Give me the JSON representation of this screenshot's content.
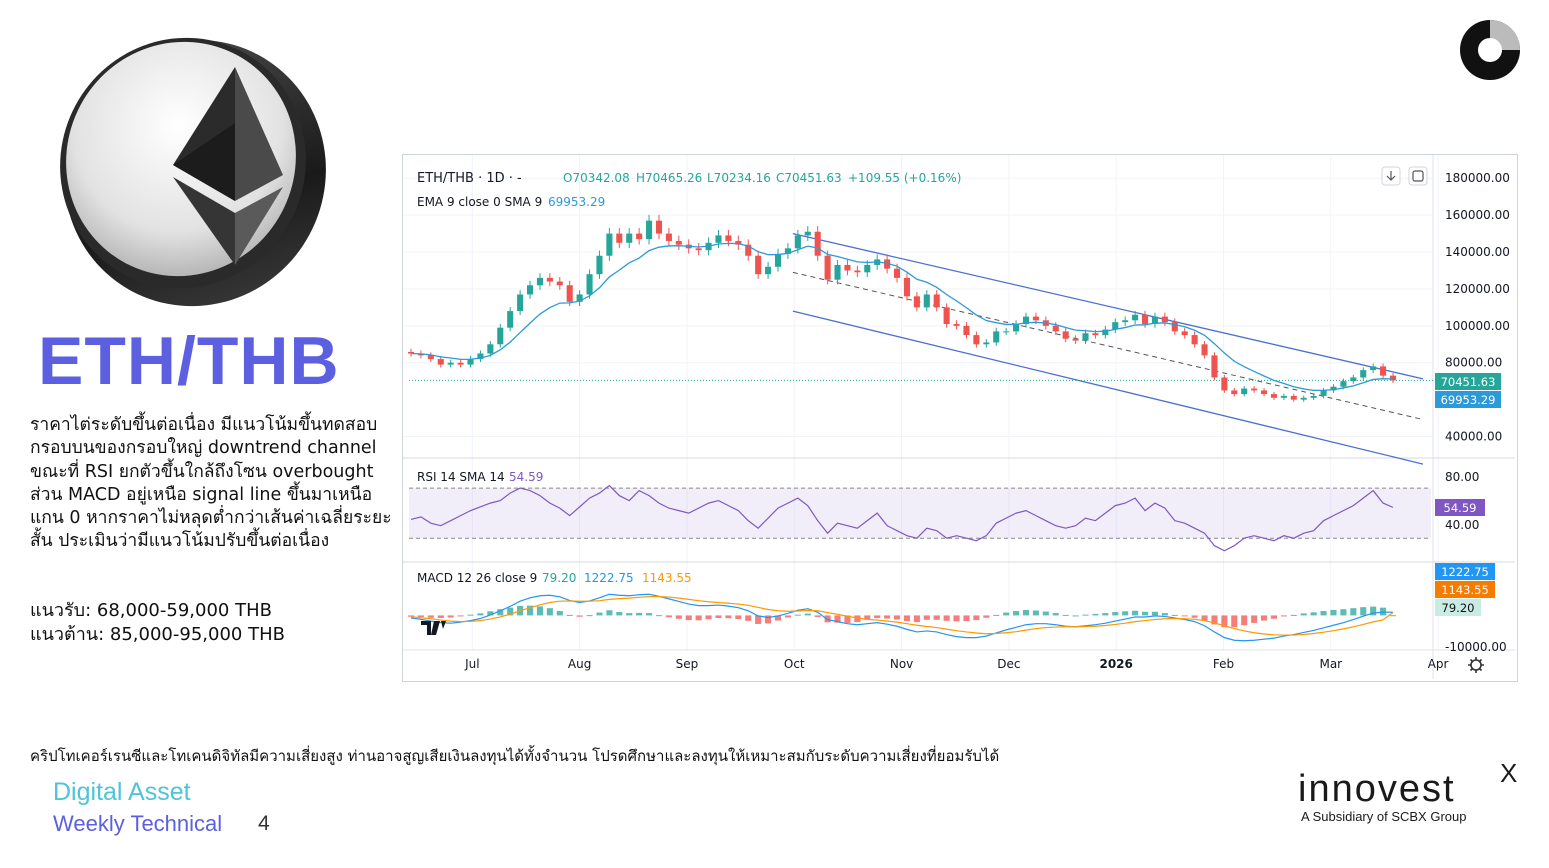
{
  "headline": "ETH/THB",
  "description": "ราคาไต่ระดับขึ้นต่อเนื่อง มีแนวโน้มขึ้นทดสอบกรอบบนของกรอบใหญ่ downtrend channel ขณะที่ RSI ยกตัวขึ้นใกล้ถึงโซน overbought ส่วน MACD อยู่เหนือ signal line ขึ้นมาเหนือแกน 0 หากราคาไม่หลุดต่ำกว่าเส้นค่าเฉลี่ยระยะสั้น ประเมินว่ามีแนวโน้มปรับขึ้นต่อเนื่อง",
  "support": "แนวรับ: 68,000-59,000 THB",
  "resistance": "แนวต้าน: 85,000-95,000 THB",
  "disclaimer": "คริปโทเคอร์เรนซีและโทเคนดิจิทัลมีความเสี่ยงสูง ท่านอาจสูญเสียเงินลงทุนได้ทั้งจำนวน โปรดศึกษาและลงทุนให้เหมาะสมกับระดับความเสี่ยงที่ยอมรับได้",
  "footer": {
    "line1": "Digital Asset",
    "line2": "Weekly Technical",
    "page": "4"
  },
  "brand": {
    "name": "innovest",
    "mark": "X",
    "sub": "A Subsidiary of SCBX Group"
  },
  "colors": {
    "accent": "#5b5fe0",
    "cyan": "#4fc3d9",
    "up": "#26a69a",
    "down": "#ef5350",
    "ema": "#2c9ad8",
    "channel": "#4a6fd1",
    "rsi": "#7e57c2",
    "macd": "#2196f3",
    "signal": "#ff9800"
  },
  "chart_data": {
    "type": "line",
    "title": "ETH/THB · 1D · -",
    "ohlc_text": {
      "open": "O70342.08",
      "high": "H70465.26",
      "low": "L70234.16",
      "close": "C70451.63",
      "change": "+109.55 (+0.16%)"
    },
    "ema_label": "EMA 9 close 0 SMA 9",
    "ema_value": "69953.29",
    "x": [
      "Jul",
      "Aug",
      "Sep",
      "Oct",
      "Nov",
      "Dec",
      "2026",
      "Feb",
      "Mar",
      "Apr"
    ],
    "y_ticks": [
      "180000.00",
      "160000.00",
      "140000.00",
      "120000.00",
      "100000.00",
      "80000.00",
      "40000.00"
    ],
    "ylim": [
      30000,
      185000
    ],
    "price_path": [
      [
        0,
        85000
      ],
      [
        1,
        84000
      ],
      [
        2,
        82000
      ],
      [
        3,
        79000
      ],
      [
        4,
        80000
      ],
      [
        5,
        79000
      ],
      [
        6,
        82000
      ],
      [
        7,
        85000
      ],
      [
        8,
        90000
      ],
      [
        9,
        99000
      ],
      [
        10,
        108000
      ],
      [
        11,
        117000
      ],
      [
        12,
        122000
      ],
      [
        13,
        126000
      ],
      [
        14,
        124000
      ],
      [
        15,
        122000
      ],
      [
        16,
        113000
      ],
      [
        17,
        117000
      ],
      [
        18,
        128000
      ],
      [
        19,
        138000
      ],
      [
        20,
        150000
      ],
      [
        21,
        145000
      ],
      [
        22,
        150000
      ],
      [
        23,
        147000
      ],
      [
        24,
        157000
      ],
      [
        25,
        150000
      ],
      [
        26,
        146000
      ],
      [
        27,
        144000
      ],
      [
        28,
        142000
      ],
      [
        29,
        141000
      ],
      [
        30,
        145000
      ],
      [
        31,
        149000
      ],
      [
        32,
        146000
      ],
      [
        33,
        144000
      ],
      [
        34,
        138000
      ],
      [
        35,
        128000
      ],
      [
        36,
        132000
      ],
      [
        37,
        139000
      ],
      [
        38,
        142000
      ],
      [
        39,
        149000
      ],
      [
        40,
        151000
      ],
      [
        41,
        138000
      ],
      [
        42,
        125000
      ],
      [
        43,
        133000
      ],
      [
        44,
        130000
      ],
      [
        45,
        129000
      ],
      [
        46,
        133000
      ],
      [
        47,
        136000
      ],
      [
        48,
        131000
      ],
      [
        49,
        126000
      ],
      [
        50,
        116000
      ],
      [
        51,
        110000
      ],
      [
        52,
        117000
      ],
      [
        53,
        110000
      ],
      [
        54,
        101000
      ],
      [
        55,
        100000
      ],
      [
        56,
        95000
      ],
      [
        57,
        90000
      ],
      [
        58,
        91000
      ],
      [
        59,
        97000
      ],
      [
        60,
        97000
      ],
      [
        61,
        101000
      ],
      [
        62,
        105000
      ],
      [
        63,
        103000
      ],
      [
        64,
        100000
      ],
      [
        65,
        97000
      ],
      [
        66,
        93000
      ],
      [
        67,
        92000
      ],
      [
        68,
        96000
      ],
      [
        69,
        95000
      ],
      [
        70,
        98000
      ],
      [
        71,
        102000
      ],
      [
        72,
        103000
      ],
      [
        73,
        106000
      ],
      [
        74,
        101000
      ],
      [
        75,
        105000
      ],
      [
        76,
        102000
      ],
      [
        77,
        97000
      ],
      [
        78,
        95000
      ],
      [
        79,
        90000
      ],
      [
        80,
        84000
      ],
      [
        81,
        72000
      ],
      [
        82,
        65000
      ],
      [
        83,
        63000
      ],
      [
        84,
        66000
      ],
      [
        85,
        65000
      ],
      [
        86,
        63000
      ],
      [
        87,
        61000
      ],
      [
        88,
        62000
      ],
      [
        89,
        60000
      ],
      [
        90,
        61000
      ],
      [
        91,
        62000
      ],
      [
        92,
        65000
      ],
      [
        93,
        67000
      ],
      [
        94,
        70000
      ],
      [
        95,
        72000
      ],
      [
        96,
        76000
      ],
      [
        97,
        78000
      ],
      [
        98,
        73000
      ],
      [
        99,
        70451
      ]
    ],
    "channel_upper": [
      [
        38.5,
        150000
      ],
      [
        99,
        75000
      ]
    ],
    "channel_lower": [
      [
        38.5,
        108000
      ],
      [
        99,
        29000
      ]
    ],
    "channel_mid": [
      [
        38.5,
        129000
      ],
      [
        99,
        53000
      ]
    ],
    "last_price_label": "70451.63",
    "ema_price_label": "69953.29",
    "rsi": {
      "label": "RSI 14 SMA 14",
      "value": "54.59",
      "ticks": [
        "80.00",
        "40.00"
      ],
      "ylim": [
        15,
        90
      ],
      "overbought": 70,
      "oversold": 30,
      "values": [
        45,
        47,
        42,
        40,
        44,
        48,
        52,
        55,
        58,
        60,
        66,
        70,
        68,
        64,
        58,
        54,
        48,
        55,
        62,
        66,
        72,
        64,
        60,
        68,
        64,
        58,
        54,
        52,
        50,
        54,
        58,
        60,
        56,
        52,
        44,
        38,
        46,
        54,
        58,
        62,
        56,
        44,
        34,
        42,
        40,
        38,
        44,
        50,
        40,
        36,
        32,
        30,
        38,
        36,
        30,
        32,
        30,
        28,
        32,
        42,
        46,
        50,
        52,
        48,
        44,
        40,
        38,
        40,
        46,
        44,
        50,
        56,
        58,
        62,
        52,
        58,
        54,
        44,
        42,
        38,
        34,
        24,
        20,
        24,
        30,
        32,
        30,
        28,
        32,
        30,
        34,
        36,
        44,
        48,
        52,
        56,
        62,
        68,
        58,
        54.59
      ]
    },
    "macd": {
      "label": "MACD 12 26 close 9",
      "macd_value": "1222.75",
      "signal_value": "1143.55",
      "hist_value": "79.20",
      "ticks": [
        "-10000.00"
      ],
      "ylim": [
        -13000,
        11000
      ],
      "macd": [
        -1000,
        -1500,
        -2200,
        -2800,
        -3000,
        -2600,
        -2000,
        -1200,
        200,
        1800,
        3500,
        5500,
        6800,
        7600,
        7800,
        7200,
        5800,
        5000,
        5600,
        6800,
        8200,
        7800,
        7600,
        8000,
        8200,
        7400,
        6400,
        5400,
        4400,
        3800,
        3800,
        4000,
        3600,
        3000,
        1800,
        -200,
        -800,
        -200,
        800,
        2000,
        2600,
        1200,
        -1600,
        -2400,
        -3200,
        -3600,
        -3200,
        -2800,
        -3400,
        -4200,
        -5400,
        -6400,
        -6000,
        -6400,
        -7400,
        -8200,
        -8600,
        -8600,
        -8000,
        -6800,
        -5600,
        -4600,
        -3600,
        -3200,
        -3200,
        -3600,
        -4200,
        -4400,
        -4000,
        -3600,
        -3000,
        -2200,
        -1400,
        -600,
        -600,
        -200,
        -400,
        -1000,
        -1600,
        -2400,
        -4000,
        -6400,
        -8600,
        -9600,
        -9800,
        -9600,
        -9200,
        -8800,
        -8000,
        -7400,
        -6600,
        -5800,
        -4800,
        -3800,
        -2800,
        -1600,
        -300,
        900,
        1300,
        1222.75
      ],
      "signal": [
        -500,
        -900,
        -1300,
        -1800,
        -2200,
        -2400,
        -2300,
        -2000,
        -1400,
        -600,
        500,
        1800,
        3000,
        4100,
        5000,
        5500,
        5600,
        5500,
        5500,
        5700,
        6200,
        6500,
        6700,
        7000,
        7300,
        7300,
        7100,
        6700,
        6200,
        5700,
        5300,
        5000,
        4700,
        4400,
        3900,
        3100,
        2300,
        1800,
        1600,
        1700,
        1900,
        1800,
        1100,
        400,
        -300,
        -1000,
        -1500,
        -1800,
        -2200,
        -2600,
        -3200,
        -3800,
        -4300,
        -4700,
        -5300,
        -5900,
        -6400,
        -6800,
        -7100,
        -7000,
        -6700,
        -6300,
        -5700,
        -5100,
        -4700,
        -4500,
        -4400,
        -4400,
        -4300,
        -4200,
        -3900,
        -3500,
        -3000,
        -2400,
        -2000,
        -1600,
        -1300,
        -1200,
        -1300,
        -1500,
        -2000,
        -2900,
        -4000,
        -5100,
        -6000,
        -6700,
        -7200,
        -7500,
        -7600,
        -7600,
        -7400,
        -7000,
        -6500,
        -5900,
        -5200,
        -4400,
        -3500,
        -2500,
        -1700,
        1143.55
      ]
    }
  }
}
